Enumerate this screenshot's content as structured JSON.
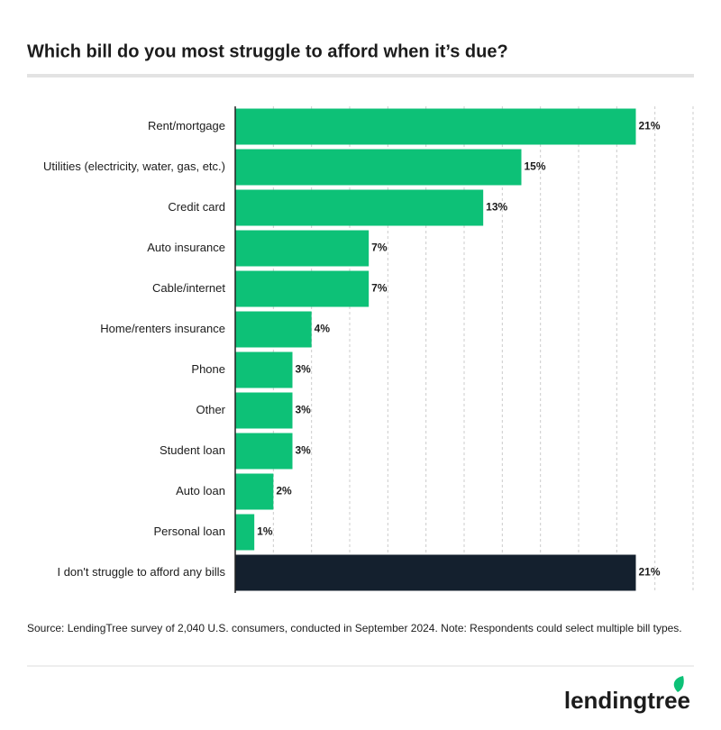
{
  "chart_data": {
    "type": "barh",
    "title": "Which bill do you most struggle to afford when it’s due?",
    "categories": [
      "Rent/mortgage",
      "Utilities (electricity, water, gas, etc.)",
      "Credit card",
      "Auto insurance",
      "Cable/internet",
      "Home/renters insurance",
      "Phone",
      "Other",
      "Student loan",
      "Auto loan",
      "Personal loan",
      "I don't struggle to afford any bills"
    ],
    "values": [
      21,
      15,
      13,
      7,
      7,
      4,
      3,
      3,
      3,
      2,
      1,
      21
    ],
    "value_labels": [
      "21%",
      "15%",
      "13%",
      "7%",
      "7%",
      "4%",
      "3%",
      "3%",
      "3%",
      "2%",
      "1%",
      "21%"
    ],
    "colors": [
      "#0dc177",
      "#0dc177",
      "#0dc177",
      "#0dc177",
      "#0dc177",
      "#0dc177",
      "#0dc177",
      "#0dc177",
      "#0dc177",
      "#0dc177",
      "#0dc177",
      "#14202e"
    ],
    "xlim": [
      0,
      24
    ],
    "xticks": [
      0,
      2,
      4,
      6,
      8,
      10,
      12,
      14,
      16,
      18,
      20,
      22,
      24
    ],
    "grid": true,
    "source": "Source: LendingTree survey of 2,040 U.S. consumers, conducted in September 2024. Note: Respondents could select multiple bill types.",
    "brand": "lendingtree"
  }
}
